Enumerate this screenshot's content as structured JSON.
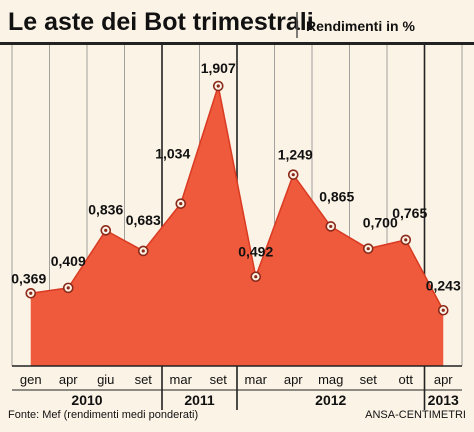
{
  "chart_data": {
    "type": "area",
    "title": "Le aste dei Bot trimestrali",
    "subtitle": "Rendimenti in %",
    "categories": [
      "gen",
      "apr",
      "giu",
      "set",
      "mar",
      "set",
      "mar",
      "apr",
      "mag",
      "set",
      "ott",
      "apr"
    ],
    "values": [
      0.369,
      0.409,
      0.836,
      0.683,
      1.034,
      1.907,
      0.492,
      1.249,
      0.865,
      0.7,
      0.765,
      0.243
    ],
    "labels": [
      "0,369",
      "0,409",
      "0,836",
      "0,683",
      "1,034",
      "1,907",
      "0,492",
      "1,249",
      "0,865",
      "0,700",
      "0,765",
      "0,243"
    ],
    "years": [
      {
        "label": "2010",
        "from": 0,
        "to": 3
      },
      {
        "label": "2011",
        "from": 4,
        "to": 5
      },
      {
        "label": "2012",
        "from": 6,
        "to": 10
      },
      {
        "label": "2013",
        "from": 11,
        "to": 11
      }
    ],
    "ylim": [
      0,
      2.1
    ],
    "grid": true,
    "colors": {
      "area": "#ef5a3c",
      "line": "#d93a22",
      "background": "#fbf3e6"
    }
  },
  "footer": {
    "source": "Fonte: Mef (rendimenti medi ponderati)",
    "credit": "ANSA-CENTIMETRI"
  }
}
